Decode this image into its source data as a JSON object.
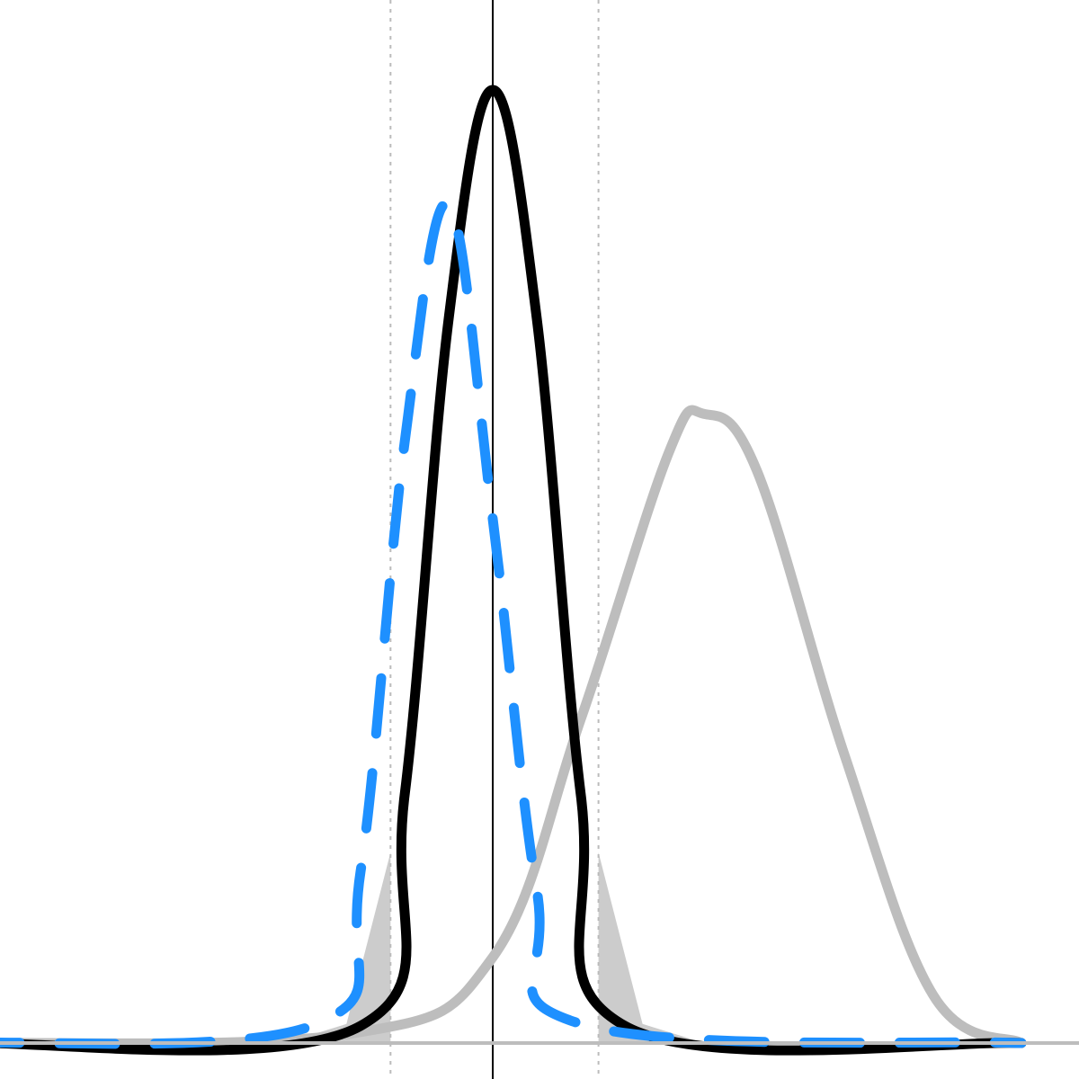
{
  "chart_data": {
    "type": "line",
    "title": "",
    "xlabel": "",
    "ylabel": "",
    "xlim": [
      -3,
      3
    ],
    "ylim": [
      0,
      1.1
    ],
    "grid": false,
    "legend": "none",
    "series": [
      {
        "id": "black",
        "style": "solid",
        "color": "#000000",
        "points": [
          [
            -3,
            0
          ],
          [
            -0.75,
            0.018
          ],
          [
            -0.5,
            0.26
          ],
          [
            -0.25,
            0.76
          ],
          [
            0,
            1.0
          ],
          [
            0.25,
            0.76
          ],
          [
            0.5,
            0.26
          ],
          [
            0.75,
            0.018
          ],
          [
            3,
            0
          ]
        ]
      },
      {
        "id": "blue",
        "style": "dashed",
        "color": "#1e90ff",
        "points": [
          [
            -3,
            0
          ],
          [
            -1,
            0.02
          ],
          [
            -0.75,
            0.18
          ],
          [
            -0.5,
            0.63
          ],
          [
            -0.25,
            0.88
          ],
          [
            0,
            0.55
          ],
          [
            0.25,
            0.16
          ],
          [
            0.5,
            0.02
          ],
          [
            3,
            0
          ]
        ]
      },
      {
        "id": "gray",
        "style": "solid",
        "color": "#bdbdbd",
        "points": [
          [
            -3,
            0
          ],
          [
            -0.8,
            0.01
          ],
          [
            0,
            0.09
          ],
          [
            0.5,
            0.34
          ],
          [
            1,
            0.62
          ],
          [
            1.2,
            0.66
          ],
          [
            1.5,
            0.6
          ],
          [
            2,
            0.3
          ],
          [
            2.5,
            0.05
          ],
          [
            3,
            0
          ]
        ]
      }
    ],
    "vertical_lines": [
      {
        "x": 0,
        "style": "solid",
        "color": "#000000"
      },
      {
        "x": -0.58,
        "style": "dotted",
        "color": "#bbbbbb"
      },
      {
        "x": 0.6,
        "style": "dotted",
        "color": "#bbbbbb"
      }
    ],
    "shaded_tails": {
      "left_bound": -0.58,
      "right_bound": 0.6,
      "color": "#cccccc"
    }
  }
}
